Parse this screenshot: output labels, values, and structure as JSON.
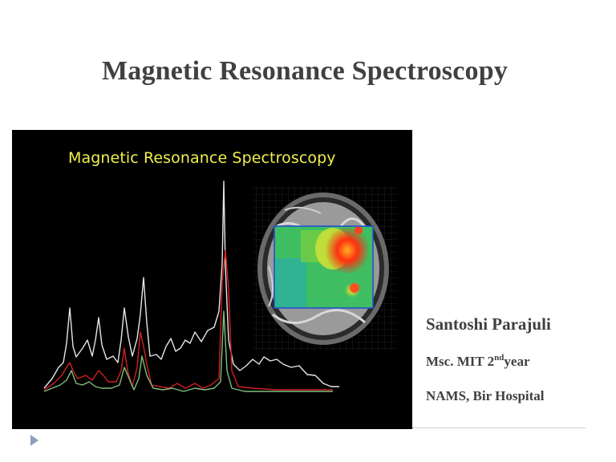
{
  "slide": {
    "title": "Magnetic Resonance Spectroscopy"
  },
  "figure": {
    "caption": "Magnetic Resonance Spectroscopy",
    "caption_color": "#f0ee4e",
    "background_color": "#000000"
  },
  "author": {
    "name": "Santoshi Parajuli",
    "course_prefix": "Msc. MIT 2",
    "course_superscript": "nd",
    "course_suffix": "year",
    "affiliation": "NAMS, Bir Hospital"
  },
  "navigation": {
    "arrow_icon": "triangle-right-icon",
    "arrow_color": "#8e9fbf"
  }
}
